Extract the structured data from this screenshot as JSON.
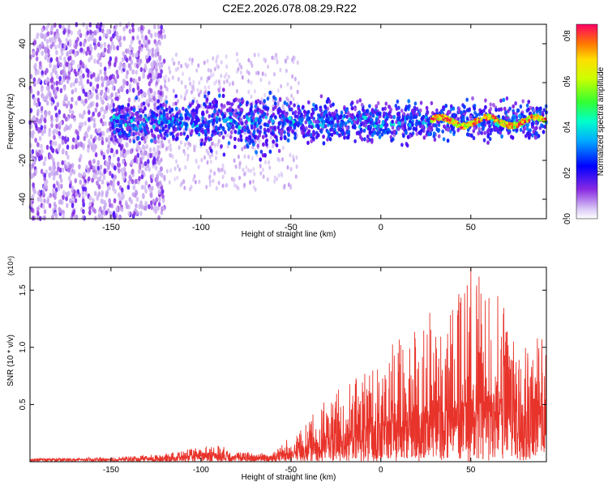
{
  "title": "C2E2.2026.078.08.29.R22",
  "colors": {
    "snr_line": "#e8332a",
    "axis": "#000000",
    "background": "#ffffff"
  },
  "chart_data": [
    {
      "type": "heatmap",
      "name": "spectrogram",
      "xlabel": "Height of straight line (km)",
      "ylabel": "Frequency (Hz)",
      "xlim": [
        -195,
        92
      ],
      "ylim": [
        -50,
        50
      ],
      "xticks": [
        -150,
        -100,
        -50,
        0,
        50
      ],
      "yticks": [
        -40,
        -20,
        0,
        20,
        40
      ],
      "colorbar": {
        "label": "Normalized spectral amplitude",
        "range": [
          0.0,
          0.85
        ],
        "ticks": [
          "0.0",
          "0.2",
          "0.4",
          "0.6",
          "0.8"
        ],
        "tick_values": [
          0.0,
          0.2,
          0.4,
          0.6,
          0.8
        ]
      },
      "features": [
        {
          "description": "broadband noise (widespread, purple)",
          "x_range": [
            -195,
            -120
          ],
          "freq_range": [
            -50,
            50
          ],
          "amplitude": 0.1
        },
        {
          "description": "main signal band",
          "x_range": [
            -150,
            92
          ],
          "freq_center": 0,
          "freq_halfwidth": 8,
          "amplitude": 0.3
        },
        {
          "description": "strong coherent trace",
          "x_range": [
            30,
            92
          ],
          "freq_center": 0,
          "amplitude": 0.75
        }
      ]
    },
    {
      "type": "line",
      "name": "snr",
      "xlabel": "Height of straight line (km)",
      "ylabel": "SNR (10 * v/v)",
      "multiplier_label": "(x10⁴)",
      "xlim": [
        -195,
        92
      ],
      "ylim": [
        0,
        1.7
      ],
      "xticks": [
        -150,
        -100,
        -50,
        0,
        50
      ],
      "yticks": [
        0.5,
        1.0,
        1.5
      ],
      "ytick_labels": [
        "0.5",
        "1.0",
        "1.5"
      ],
      "envelope": [
        {
          "x": -195,
          "mean": 0.02,
          "peak": 0.03
        },
        {
          "x": -150,
          "mean": 0.02,
          "peak": 0.04
        },
        {
          "x": -120,
          "mean": 0.03,
          "peak": 0.07
        },
        {
          "x": -100,
          "mean": 0.06,
          "peak": 0.13
        },
        {
          "x": -90,
          "mean": 0.07,
          "peak": 0.15
        },
        {
          "x": -80,
          "mean": 0.04,
          "peak": 0.09
        },
        {
          "x": -60,
          "mean": 0.04,
          "peak": 0.08
        },
        {
          "x": -45,
          "mean": 0.1,
          "peak": 0.3
        },
        {
          "x": -30,
          "mean": 0.18,
          "peak": 0.55
        },
        {
          "x": -10,
          "mean": 0.28,
          "peak": 0.8
        },
        {
          "x": 0,
          "mean": 0.3,
          "peak": 1.0
        },
        {
          "x": 20,
          "mean": 0.38,
          "peak": 1.25
        },
        {
          "x": 40,
          "mean": 0.45,
          "peak": 1.45
        },
        {
          "x": 50,
          "mean": 0.5,
          "peak": 1.7
        },
        {
          "x": 60,
          "mean": 0.52,
          "peak": 1.55
        },
        {
          "x": 75,
          "mean": 0.5,
          "peak": 1.3
        },
        {
          "x": 92,
          "mean": 0.48,
          "peak": 1.05
        }
      ]
    }
  ]
}
